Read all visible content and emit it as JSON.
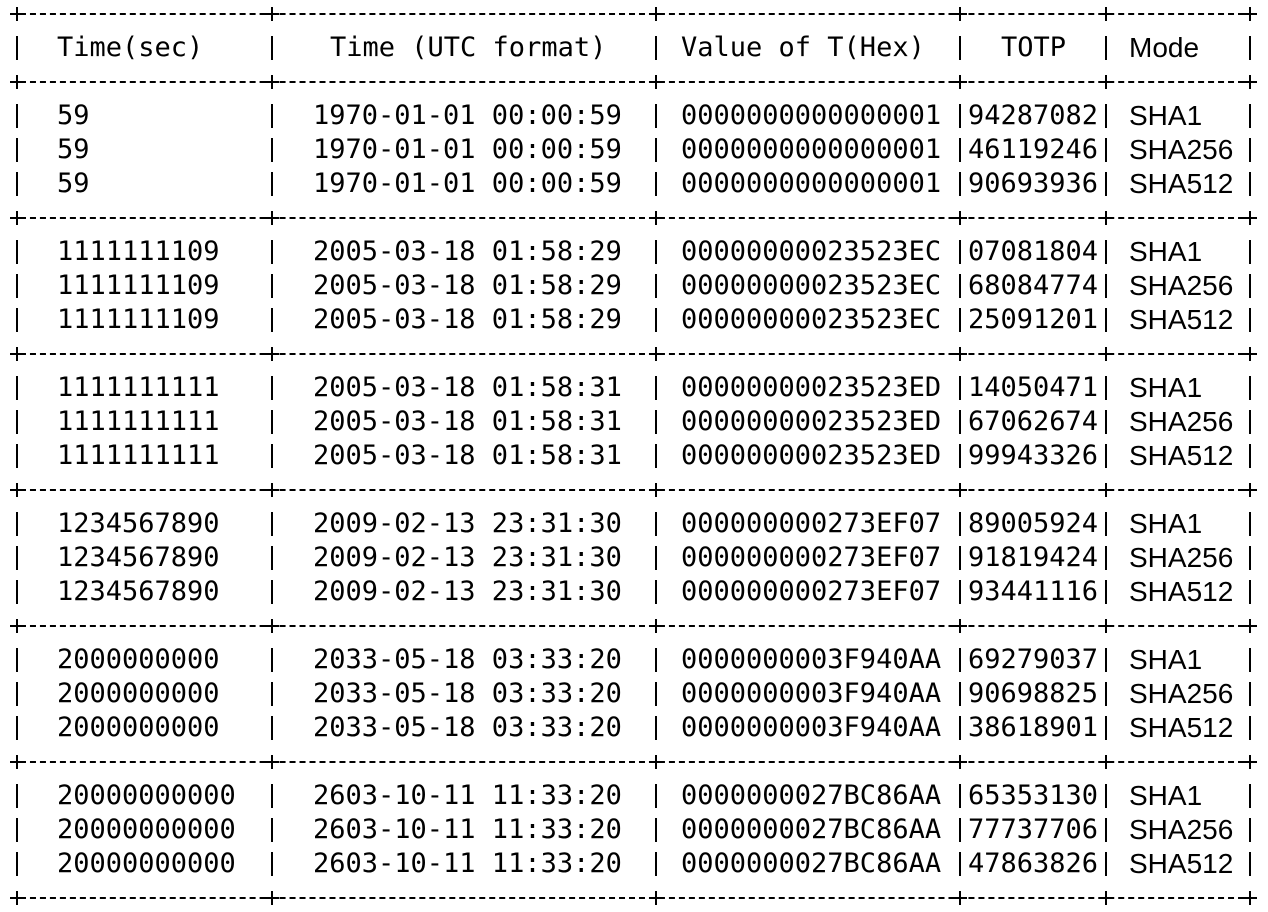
{
  "table": {
    "headers": {
      "time_sec": "Time(sec)",
      "time_utc": "Time (UTC format)",
      "value_t": "Value of T(Hex)",
      "totp": "TOTP",
      "mode": "Mode"
    },
    "groups": [
      {
        "rows": [
          {
            "time_sec": "59",
            "time_utc": "1970-01-01 00:00:59",
            "value_t": "0000000000000001",
            "totp": "94287082",
            "mode": "SHA1"
          },
          {
            "time_sec": "59",
            "time_utc": "1970-01-01 00:00:59",
            "value_t": "0000000000000001",
            "totp": "46119246",
            "mode": "SHA256"
          },
          {
            "time_sec": "59",
            "time_utc": "1970-01-01 00:00:59",
            "value_t": "0000000000000001",
            "totp": "90693936",
            "mode": "SHA512"
          }
        ]
      },
      {
        "rows": [
          {
            "time_sec": "1111111109",
            "time_utc": "2005-03-18 01:58:29",
            "value_t": "00000000023523EC",
            "totp": "07081804",
            "mode": "SHA1"
          },
          {
            "time_sec": "1111111109",
            "time_utc": "2005-03-18 01:58:29",
            "value_t": "00000000023523EC",
            "totp": "68084774",
            "mode": "SHA256"
          },
          {
            "time_sec": "1111111109",
            "time_utc": "2005-03-18 01:58:29",
            "value_t": "00000000023523EC",
            "totp": "25091201",
            "mode": "SHA512"
          }
        ]
      },
      {
        "rows": [
          {
            "time_sec": "1111111111",
            "time_utc": "2005-03-18 01:58:31",
            "value_t": "00000000023523ED",
            "totp": "14050471",
            "mode": "SHA1"
          },
          {
            "time_sec": "1111111111",
            "time_utc": "2005-03-18 01:58:31",
            "value_t": "00000000023523ED",
            "totp": "67062674",
            "mode": "SHA256"
          },
          {
            "time_sec": "1111111111",
            "time_utc": "2005-03-18 01:58:31",
            "value_t": "00000000023523ED",
            "totp": "99943326",
            "mode": "SHA512"
          }
        ]
      },
      {
        "rows": [
          {
            "time_sec": "1234567890",
            "time_utc": "2009-02-13 23:31:30",
            "value_t": "000000000273EF07",
            "totp": "89005924",
            "mode": "SHA1"
          },
          {
            "time_sec": "1234567890",
            "time_utc": "2009-02-13 23:31:30",
            "value_t": "000000000273EF07",
            "totp": "91819424",
            "mode": "SHA256"
          },
          {
            "time_sec": "1234567890",
            "time_utc": "2009-02-13 23:31:30",
            "value_t": "000000000273EF07",
            "totp": "93441116",
            "mode": "SHA512"
          }
        ]
      },
      {
        "rows": [
          {
            "time_sec": "2000000000",
            "time_utc": "2033-05-18 03:33:20",
            "value_t": "0000000003F940AA",
            "totp": "69279037",
            "mode": "SHA1"
          },
          {
            "time_sec": "2000000000",
            "time_utc": "2033-05-18 03:33:20",
            "value_t": "0000000003F940AA",
            "totp": "90698825",
            "mode": "SHA256"
          },
          {
            "time_sec": "2000000000",
            "time_utc": "2033-05-18 03:33:20",
            "value_t": "0000000003F940AA",
            "totp": "38618901",
            "mode": "SHA512"
          }
        ]
      },
      {
        "rows": [
          {
            "time_sec": "20000000000",
            "time_utc": "2603-10-11 11:33:20",
            "value_t": "0000000027BC86AA",
            "totp": "65353130",
            "mode": "SHA1"
          },
          {
            "time_sec": "20000000000",
            "time_utc": "2603-10-11 11:33:20",
            "value_t": "0000000027BC86AA",
            "totp": "77737706",
            "mode": "SHA256"
          },
          {
            "time_sec": "20000000000",
            "time_utc": "2603-10-11 11:33:20",
            "value_t": "0000000027BC86AA",
            "totp": "47863826",
            "mode": "SHA512"
          }
        ]
      }
    ]
  }
}
